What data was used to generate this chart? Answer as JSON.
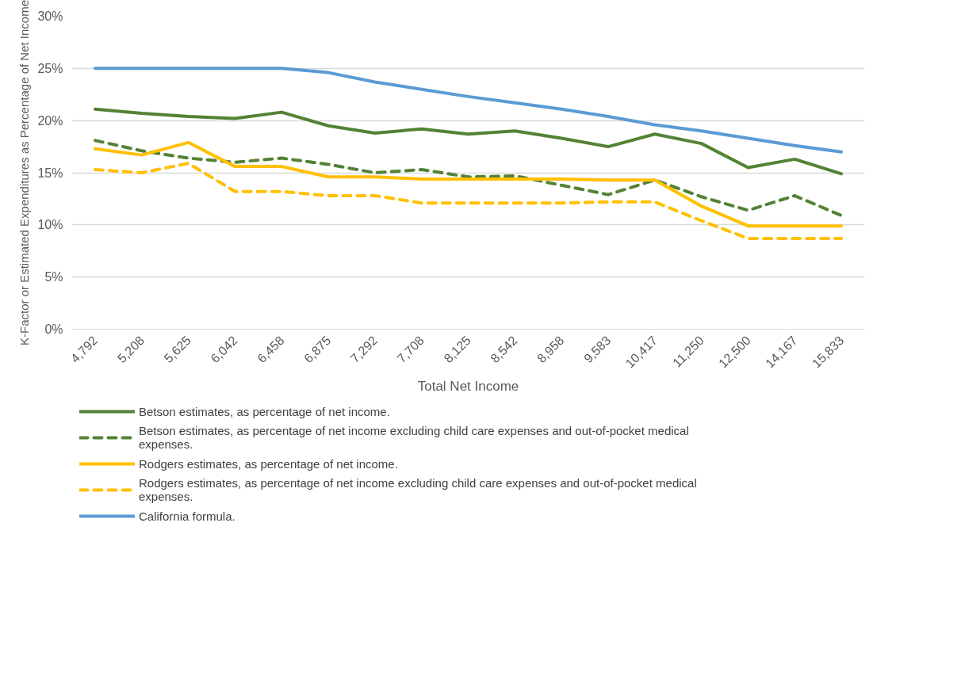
{
  "chart_data": {
    "type": "line",
    "xlabel": "Total Net Income",
    "ylabel": "K-Factor or Estimated Expenditures as Percentage of Net Income",
    "categories": [
      "4,792",
      "5,208",
      "5,625",
      "6,042",
      "6,458",
      "6,875",
      "7,292",
      "7,708",
      "8,125",
      "8,542",
      "8,958",
      "9,583",
      "10,417",
      "11,250",
      "12,500",
      "14,167",
      "15,833"
    ],
    "ylim": [
      0,
      30
    ],
    "yticks": [
      {
        "value": 0,
        "label": "0%"
      },
      {
        "value": 5,
        "label": "5%"
      },
      {
        "value": 10,
        "label": "10%"
      },
      {
        "value": 15,
        "label": "15%"
      },
      {
        "value": 20,
        "label": "20%"
      },
      {
        "value": 25,
        "label": "25%"
      },
      {
        "value": 30,
        "label": "30%"
      }
    ],
    "grid": "y",
    "legend": "bottom",
    "marker": "none",
    "series": [
      {
        "name": "Betson estimates, as percentage of net income.",
        "color": "#548235",
        "line_style": "solid",
        "values": [
          21.1,
          20.7,
          20.4,
          20.2,
          20.8,
          19.5,
          18.8,
          19.2,
          18.7,
          19.0,
          18.3,
          17.5,
          18.7,
          17.8,
          15.5,
          16.3,
          14.9
        ]
      },
      {
        "name": "Betson estimates, as percentage of net income excluding child care expenses and out-of-pocket medical expenses.",
        "color": "#548235",
        "line_style": "dashed",
        "values": [
          18.1,
          17.1,
          16.4,
          16.0,
          16.4,
          15.8,
          15.0,
          15.3,
          14.6,
          14.7,
          13.8,
          12.9,
          14.3,
          12.7,
          11.4,
          12.8,
          10.9
        ]
      },
      {
        "name": "Rodgers estimates, as percentage of net income.",
        "color": "#ffc000",
        "line_style": "solid",
        "values": [
          17.3,
          16.7,
          17.9,
          15.6,
          15.6,
          14.6,
          14.6,
          14.4,
          14.4,
          14.4,
          14.4,
          14.3,
          14.3,
          11.8,
          9.9,
          9.9,
          9.9
        ]
      },
      {
        "name": "Rodgers estimates, as percentage of net income excluding child care expenses and out-of-pocket medical expenses.",
        "color": "#ffc000",
        "line_style": "dashed",
        "values": [
          15.3,
          15.0,
          15.9,
          13.2,
          13.2,
          12.8,
          12.8,
          12.1,
          12.1,
          12.1,
          12.1,
          12.2,
          12.2,
          10.4,
          8.7,
          8.7,
          8.7
        ]
      },
      {
        "name": "California formula.",
        "color": "#5b9bd5",
        "line_style": "solid",
        "values": [
          25,
          25,
          25,
          25,
          25,
          24.6,
          23.7,
          23.0,
          22.3,
          21.7,
          21.1,
          20.4,
          19.6,
          19.0,
          18.3,
          17.6,
          17.0
        ]
      }
    ]
  }
}
